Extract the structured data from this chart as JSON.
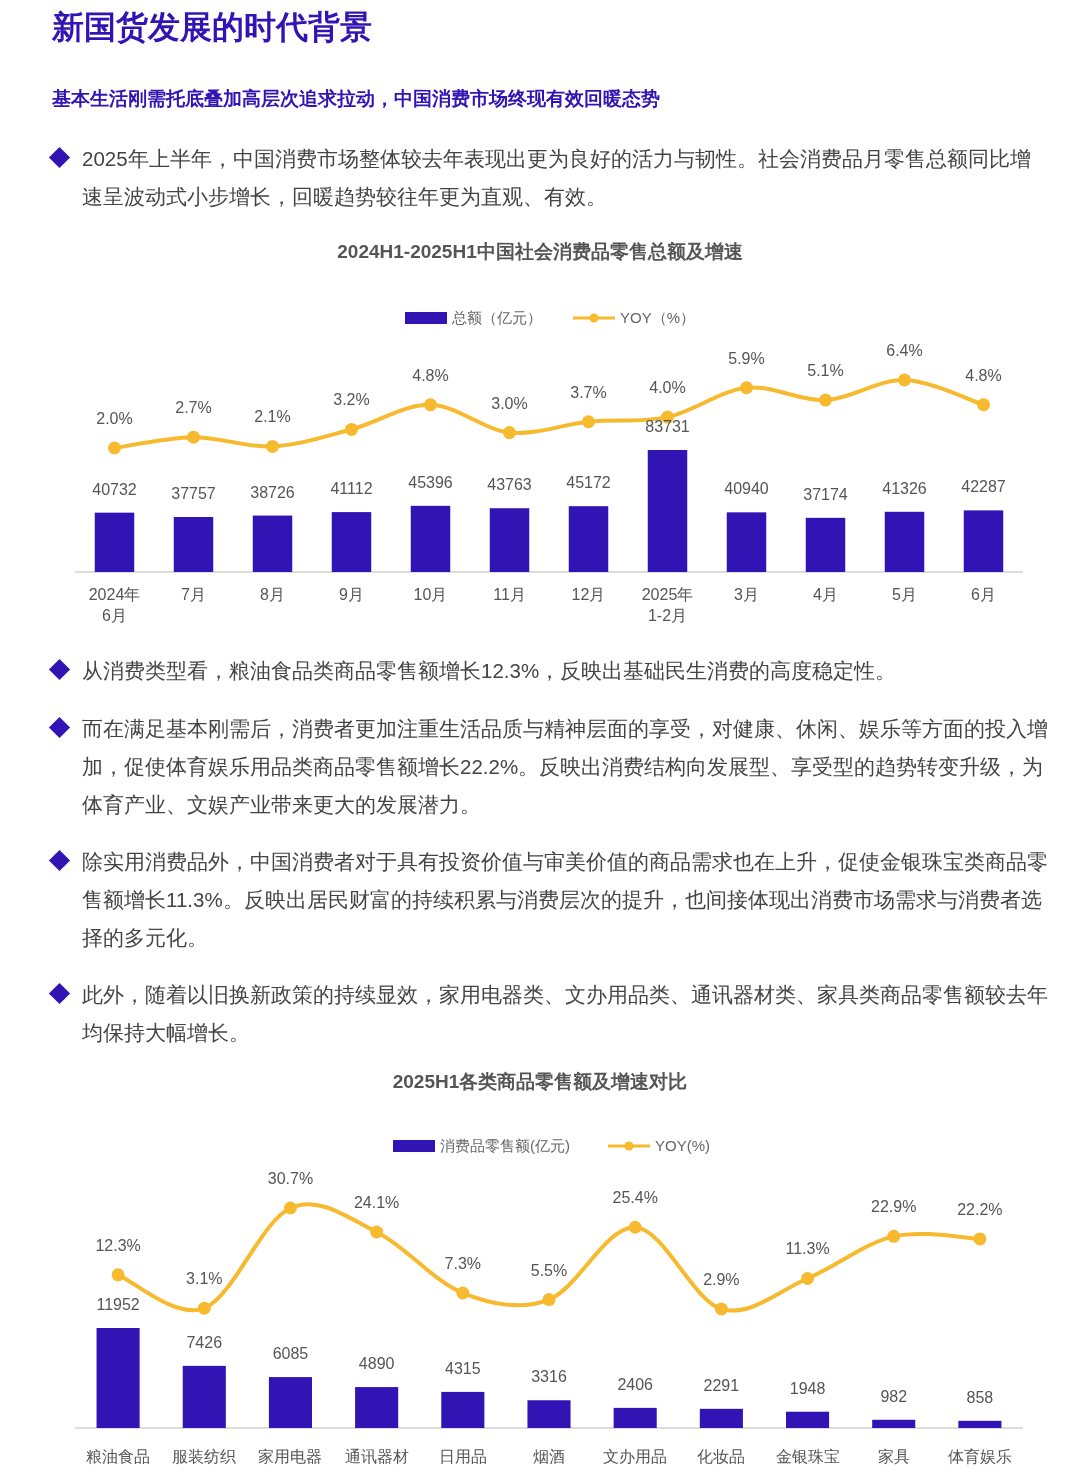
{
  "chart_data": [
    {
      "type": "line",
      "title": "2024H1-2025H1中国社会消费品零售总额及增速",
      "categories": [
        null,
        null,
        null,
        null,
        null,
        null,
        null,
        null,
        null,
        null,
        null,
        null
      ],
      "series": [
        {
          "name": "YOY（%）",
          "color": "#f7b92e",
          "values": [
            2.0,
            2.7,
            2.1,
            3.2,
            4.8,
            3.0,
            3.7,
            4.0,
            5.9,
            5.1,
            6.4,
            4.8
          ],
          "value_labels": [
            "2.0%",
            "2.7%",
            "2.1%",
            "3.2%",
            "4.8%",
            "3.0%",
            "3.7%",
            "4.0%",
            "5.9%",
            "5.1%",
            "6.4%",
            "4.8%"
          ]
        }
      ],
      "marker": "circle",
      "tick_labels": false,
      "legend": "top",
      "grid": false
    },
    {
      "type": "bar",
      "annotations": [
        "新国货发展的时代背景",
        "基本生活刚需托底叠加高层次追求拉动，中国消费市场终现有效回暖态势",
        "2025年上半年，中国消费市场整体较去年表现出更为良好的活力与韧性。社会消费品月零售总额同比增速呈波动式小步增长，回暖趋势较往年更为直观、有效。"
      ],
      "categories": [
        "2024年\n6月",
        "7月",
        "8月",
        "9月",
        "10月",
        "11月",
        "12月",
        "2025年\n1-2月",
        "3月",
        "4月",
        "5月",
        "6月"
      ],
      "series": [
        {
          "name": "总额（亿元）",
          "color": "#3214b4",
          "values": [
            40732,
            37757,
            38726,
            41112,
            45396,
            43763,
            45172,
            83731,
            40940,
            37174,
            41326,
            42287
          ],
          "value_labels": [
            "40732",
            "37757",
            "38726",
            "41112",
            "45396",
            "43763",
            "45172",
            "83731",
            "40940",
            "37174",
            "41326",
            "42287"
          ]
        }
      ],
      "legend": "top",
      "grid": false
    },
    {
      "type": "line",
      "title": "2025H1各类商品零售额及增速对比",
      "categories": [
        null,
        null,
        null,
        null,
        null,
        null,
        null,
        null,
        null,
        null,
        null
      ],
      "series": [
        {
          "name": "YOY(%)",
          "color": "#f7b92e",
          "values": [
            12.3,
            3.1,
            30.7,
            24.1,
            7.3,
            5.5,
            25.4,
            2.9,
            11.3,
            22.9,
            22.2
          ],
          "value_labels": [
            "12.3%",
            "3.1%",
            "30.7%",
            "24.1%",
            "7.3%",
            "5.5%",
            "25.4%",
            "2.9%",
            "11.3%",
            "22.9%",
            "22.2%"
          ]
        }
      ],
      "marker": "circle",
      "tick_labels": false,
      "legend": "top",
      "grid": false
    },
    {
      "type": "bar",
      "annotations": [
        "从消费类型看，粮油食品类商品零售额增长12.3%，反映出基础民生消费的高度稳定性。",
        "而在满足基本刚需后，消费者更加注重生活品质与精神层面的享受，对健康、休闲、娱乐等方面的投入增加，促使体育娱乐用品类商品零售额增长22.2%。反映出消费结构向发展型、享受型的趋势转变升级，为体育产业、文娱产业带来更大的发展潜力。",
        "除实用消费品外，中国消费者对于具有投资价值与审美价值的商品需求也在上升，促使金银珠宝类商品零售额增长11.3%。反映出居民财富的持续积累与消费层次的提升，也间接体现出消费市场需求与消费者选择的多元化。",
        "此外，随着以旧换新政策的持续显效，家用电器类、文办用品类、通讯器材类、家具类商品零售额较去年均保持大幅增长。"
      ],
      "categories": [
        "粮油食品",
        "服装纺织",
        "家用电器",
        "通讯器材",
        "日用品",
        "烟酒",
        "文办用品",
        "化妆品",
        "金银珠宝",
        "家具",
        "体育娱乐"
      ],
      "series": [
        {
          "name": "消费品零售额(亿元)",
          "color": "#3214b4",
          "values": [
            11952,
            7426,
            6085,
            4890,
            4315,
            3316,
            2406,
            2291,
            1948,
            982,
            858
          ],
          "value_labels": [
            "11952",
            "7426",
            "6085",
            "4890",
            "4315",
            "3316",
            "2406",
            "2291",
            "1948",
            "982",
            "858"
          ]
        }
      ],
      "legend": "top",
      "grid": false
    }
  ]
}
